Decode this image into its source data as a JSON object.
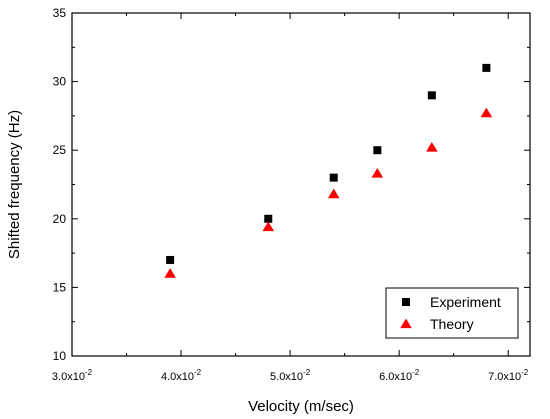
{
  "chart_data": {
    "type": "scatter",
    "xlabel": "Velocity (m/sec)",
    "ylabel": "Shifted frequency (Hz)",
    "xlim": [
      0.03,
      0.072
    ],
    "ylim": [
      10,
      35
    ],
    "x_ticks": [
      0.03,
      0.04,
      0.05,
      0.06,
      0.07
    ],
    "x_tick_labels": [
      {
        "base": "3.0x10",
        "exp": "-2"
      },
      {
        "base": "4.0x10",
        "exp": "-2"
      },
      {
        "base": "5.0x10",
        "exp": "-2"
      },
      {
        "base": "6.0x10",
        "exp": "-2"
      },
      {
        "base": "7.0x10",
        "exp": "-2"
      }
    ],
    "y_ticks": [
      10,
      15,
      20,
      25,
      30,
      35
    ],
    "y_tick_labels": [
      "10",
      "15",
      "20",
      "25",
      "30",
      "35"
    ],
    "grid": false,
    "legend_position": "bottom-right",
    "series": [
      {
        "name": "Experiment",
        "marker": "square",
        "color": "#000000",
        "points": [
          {
            "x": 0.039,
            "y": 17.0
          },
          {
            "x": 0.048,
            "y": 20.0
          },
          {
            "x": 0.054,
            "y": 23.0
          },
          {
            "x": 0.058,
            "y": 25.0
          },
          {
            "x": 0.063,
            "y": 29.0
          },
          {
            "x": 0.068,
            "y": 31.0
          }
        ]
      },
      {
        "name": "Theory",
        "marker": "triangle",
        "color": "#ff0000",
        "points": [
          {
            "x": 0.039,
            "y": 16.0
          },
          {
            "x": 0.048,
            "y": 19.4
          },
          {
            "x": 0.054,
            "y": 21.8
          },
          {
            "x": 0.058,
            "y": 23.3
          },
          {
            "x": 0.063,
            "y": 25.2
          },
          {
            "x": 0.068,
            "y": 27.7
          }
        ]
      }
    ]
  }
}
